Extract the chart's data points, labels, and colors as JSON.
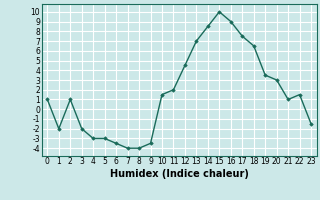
{
  "x": [
    0,
    1,
    2,
    3,
    4,
    5,
    6,
    7,
    8,
    9,
    10,
    11,
    12,
    13,
    14,
    15,
    16,
    17,
    18,
    19,
    20,
    21,
    22,
    23
  ],
  "y": [
    1,
    -2,
    1,
    -2,
    -3,
    -3,
    -3.5,
    -4,
    -4,
    -3.5,
    1.5,
    2,
    4.5,
    7,
    8.5,
    10,
    9,
    7.5,
    6.5,
    3.5,
    3,
    1,
    1.5,
    -1.5
  ],
  "line_color": "#1a6b5a",
  "marker": "D",
  "marker_size": 1.8,
  "bg_color": "#cce8e8",
  "grid_color": "#ffffff",
  "xlabel": "Humidex (Indice chaleur)",
  "xlim": [
    -0.5,
    23.5
  ],
  "ylim": [
    -4.8,
    10.8
  ],
  "yticks": [
    -4,
    -3,
    -2,
    -1,
    0,
    1,
    2,
    3,
    4,
    5,
    6,
    7,
    8,
    9,
    10
  ],
  "xticks": [
    0,
    1,
    2,
    3,
    4,
    5,
    6,
    7,
    8,
    9,
    10,
    11,
    12,
    13,
    14,
    15,
    16,
    17,
    18,
    19,
    20,
    21,
    22,
    23
  ],
  "tick_label_fontsize": 5.5,
  "xlabel_fontsize": 7.0,
  "line_width": 1.0
}
